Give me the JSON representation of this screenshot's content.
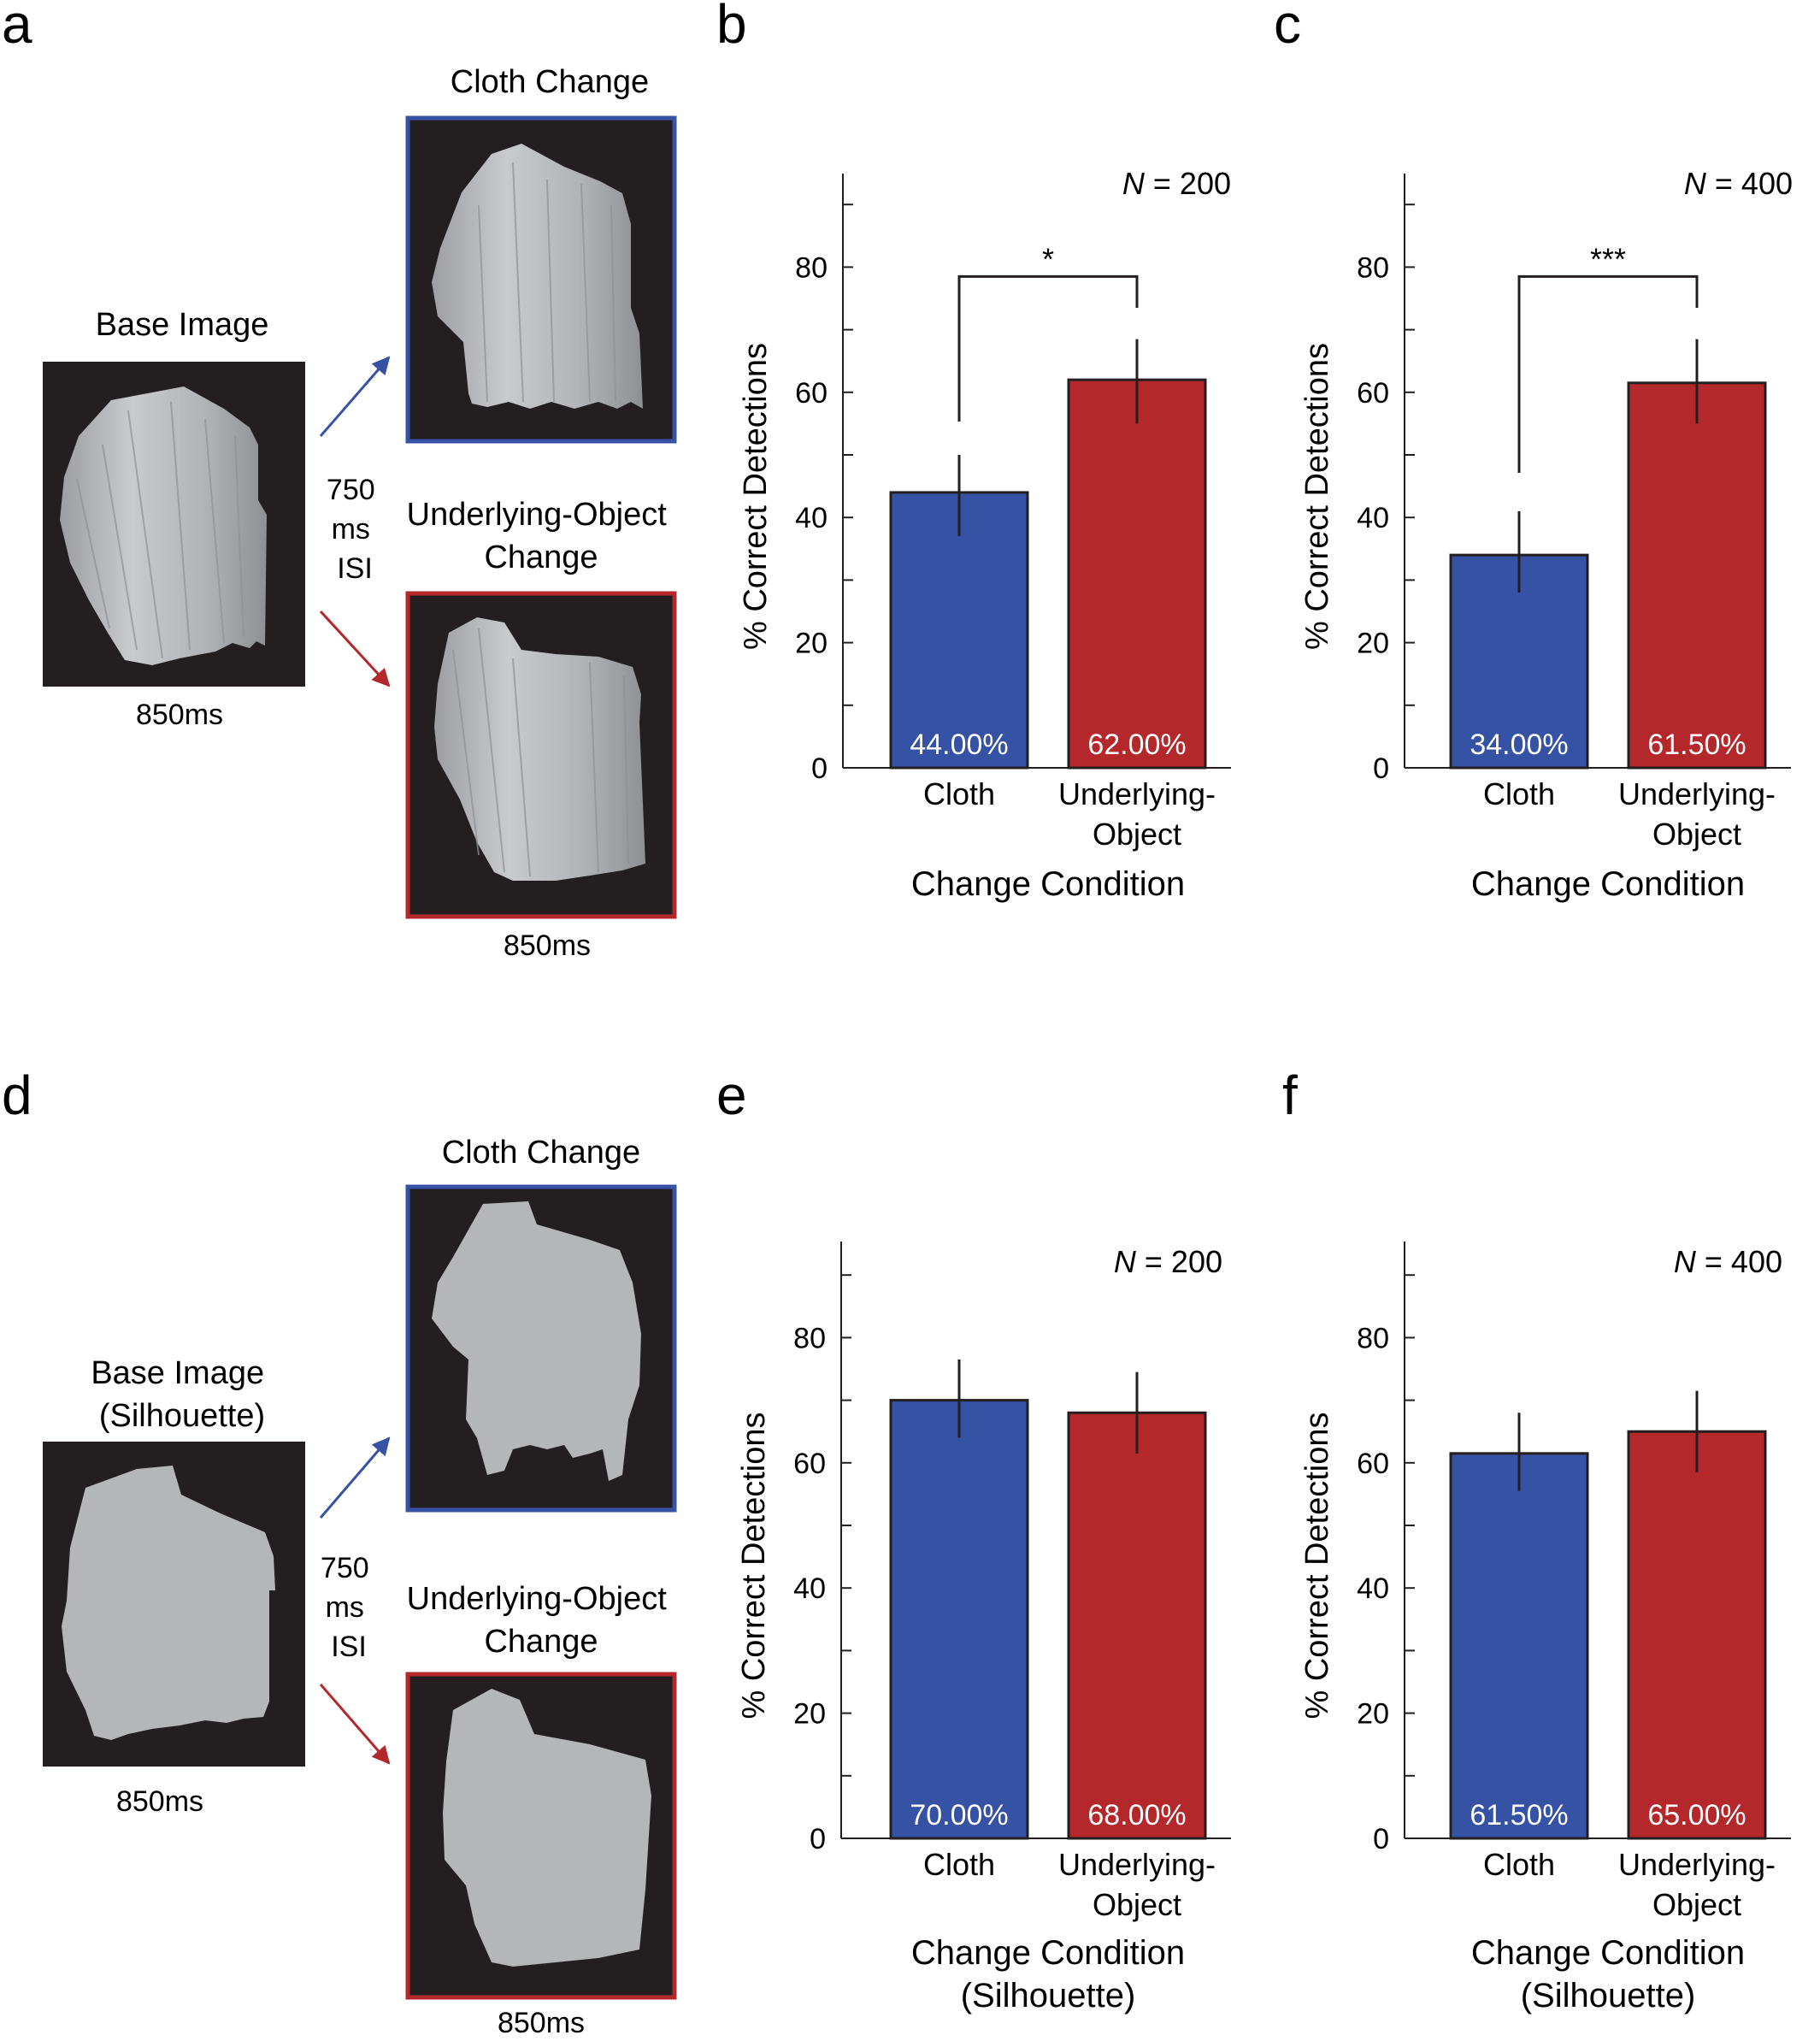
{
  "colors": {
    "cloth": "#3652a5",
    "object": "#b4272b",
    "screen": "#231f20",
    "drape": "#b4b6b8",
    "text": "#231f20"
  },
  "panels": {
    "a": {
      "letter": "a",
      "base_title": "Base Image",
      "base_duration": "850ms",
      "isi_lines": [
        "750",
        "ms",
        "ISI"
      ],
      "cloth_title": "Cloth Change",
      "object_title_lines": [
        "Underlying-Object",
        "Change"
      ],
      "changed_duration": "850ms"
    },
    "d": {
      "letter": "d",
      "base_title_lines": [
        "Base Image",
        "(Silhouette)"
      ],
      "base_duration": "850ms",
      "isi_lines": [
        "750",
        "ms",
        "ISI"
      ],
      "cloth_title": "Cloth Change",
      "object_title_lines": [
        "Underlying-Object",
        "Change"
      ],
      "changed_duration": "850ms"
    }
  },
  "chart_data": [
    {
      "panel": "b",
      "type": "bar",
      "categories": [
        "Cloth",
        "Underlying-\nObject"
      ],
      "values": [
        44.0,
        62.0
      ],
      "error_bars": [
        [
          37,
          50
        ],
        [
          55,
          68.5
        ]
      ],
      "value_labels": [
        "44.00%",
        "62.00%"
      ],
      "annotation": "N = 200",
      "significance": "*",
      "xlabel": "Change Condition",
      "ylabel": "% Correct Detections",
      "ylim": [
        0,
        95
      ],
      "yticks": [
        0,
        20,
        40,
        60,
        80
      ],
      "grid": false
    },
    {
      "panel": "c",
      "type": "bar",
      "categories": [
        "Cloth",
        "Underlying-\nObject"
      ],
      "values": [
        34.0,
        61.5
      ],
      "error_bars": [
        [
          28,
          41
        ],
        [
          55,
          68.5
        ]
      ],
      "value_labels": [
        "34.00%",
        "61.50%"
      ],
      "annotation": "N = 400",
      "significance": "***",
      "xlabel": "Change Condition",
      "ylabel": "% Correct Detections",
      "ylim": [
        0,
        95
      ],
      "yticks": [
        0,
        20,
        40,
        60,
        80
      ],
      "grid": false
    },
    {
      "panel": "e",
      "type": "bar",
      "categories": [
        "Cloth",
        "Underlying-\nObject"
      ],
      "values": [
        70.0,
        68.0
      ],
      "error_bars": [
        [
          64,
          76.5
        ],
        [
          61.5,
          74.5
        ]
      ],
      "value_labels": [
        "70.00%",
        "68.00%"
      ],
      "annotation": "N = 200",
      "significance": "",
      "xlabel": "Change Condition\n(Silhouette)",
      "ylabel": "% Correct Detections",
      "ylim": [
        0,
        95
      ],
      "yticks": [
        0,
        20,
        40,
        60,
        80
      ],
      "grid": false
    },
    {
      "panel": "f",
      "type": "bar",
      "categories": [
        "Cloth",
        "Underlying-\nObject"
      ],
      "values": [
        61.5,
        65.0
      ],
      "error_bars": [
        [
          55.5,
          68
        ],
        [
          58.5,
          71.5
        ]
      ],
      "value_labels": [
        "61.50%",
        "65.00%"
      ],
      "annotation": "N = 400",
      "significance": "",
      "xlabel": "Change Condition\n(Silhouette)",
      "ylabel": "% Correct Detections",
      "ylim": [
        0,
        95
      ],
      "yticks": [
        0,
        20,
        40,
        60,
        80
      ],
      "grid": false
    }
  ]
}
